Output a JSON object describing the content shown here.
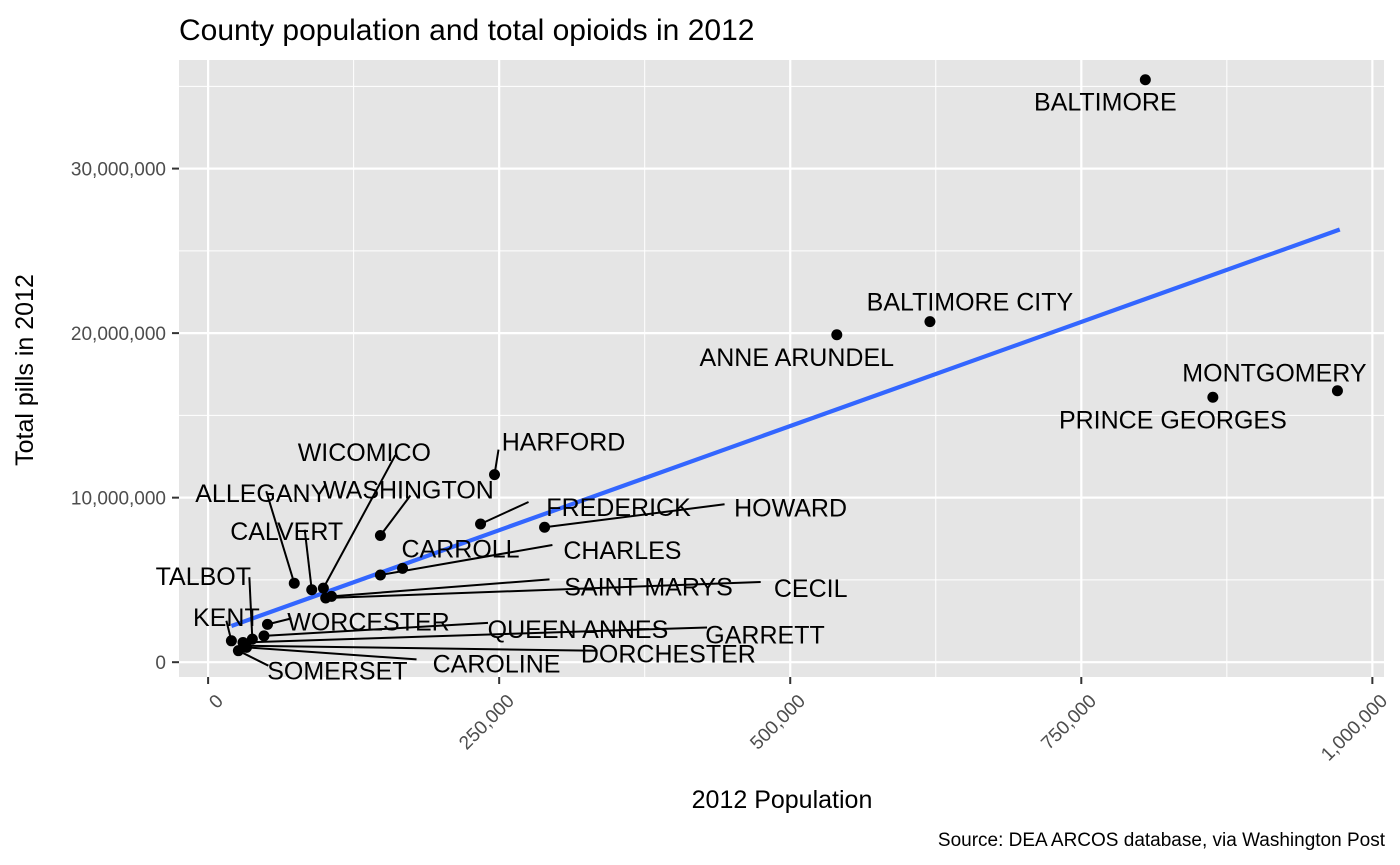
{
  "chart_data": {
    "type": "scatter",
    "title": "County population and total opioids in 2012",
    "xlabel": "2012 Population",
    "ylabel": "Total pills in 2012",
    "caption": "Source: DEA ARCOS database, via Washington Post",
    "xlim": [
      -25000,
      1010000
    ],
    "ylim": [
      -900000,
      36600000
    ],
    "x_ticks": [
      0,
      250000,
      500000,
      750000,
      1000000
    ],
    "x_tick_labels": [
      "0",
      "250,000",
      "500,000",
      "750,000",
      "1,000,000"
    ],
    "y_ticks": [
      0,
      10000000,
      20000000,
      30000000
    ],
    "y_tick_labels": [
      "0",
      "10,000,000",
      "20,000,000",
      "30,000,000"
    ],
    "grid": true,
    "point_color": "#000000",
    "trend_color": "#3366ff",
    "panel_color": "#e5e5e5",
    "trend_line": {
      "x": [
        20000,
        972000
      ],
      "y": [
        2200000,
        26300000
      ]
    },
    "points": [
      {
        "name": "BALTIMORE",
        "x": 805000,
        "y": 35400000
      },
      {
        "name": "BALTIMORE CITY",
        "x": 620000,
        "y": 20700000
      },
      {
        "name": "ANNE ARUNDEL",
        "x": 540000,
        "y": 19900000
      },
      {
        "name": "MONTGOMERY",
        "x": 970000,
        "y": 16500000
      },
      {
        "name": "PRINCE GEORGES",
        "x": 863000,
        "y": 16100000
      },
      {
        "name": "HARFORD",
        "x": 246000,
        "y": 11400000
      },
      {
        "name": "FREDERICK",
        "x": 234000,
        "y": 8400000
      },
      {
        "name": "HOWARD",
        "x": 289000,
        "y": 8200000
      },
      {
        "name": "WASHINGTON",
        "x": 148000,
        "y": 7700000
      },
      {
        "name": "CHARLES",
        "x": 148000,
        "y": 5300000
      },
      {
        "name": "CARROLL",
        "x": 167000,
        "y": 5700000
      },
      {
        "name": "ALLEGANY",
        "x": 74000,
        "y": 4800000
      },
      {
        "name": "CALVERT",
        "x": 89000,
        "y": 4400000
      },
      {
        "name": "WICOMICO",
        "x": 99000,
        "y": 4500000
      },
      {
        "name": "SAINT MARYS",
        "x": 106000,
        "y": 4000000
      },
      {
        "name": "CECIL",
        "x": 101000,
        "y": 3900000
      },
      {
        "name": "WORCESTER",
        "x": 51000,
        "y": 2300000
      },
      {
        "name": "TALBOT",
        "x": 38000,
        "y": 1400000
      },
      {
        "name": "QUEEN ANNES",
        "x": 48000,
        "y": 1600000
      },
      {
        "name": "GARRETT",
        "x": 30000,
        "y": 1200000
      },
      {
        "name": "KENT",
        "x": 20000,
        "y": 1300000
      },
      {
        "name": "SOMERSET",
        "x": 26000,
        "y": 700000
      },
      {
        "name": "CAROLINE",
        "x": 33000,
        "y": 900000
      },
      {
        "name": "DORCHESTER",
        "x": 32000,
        "y": 1000000
      }
    ]
  }
}
